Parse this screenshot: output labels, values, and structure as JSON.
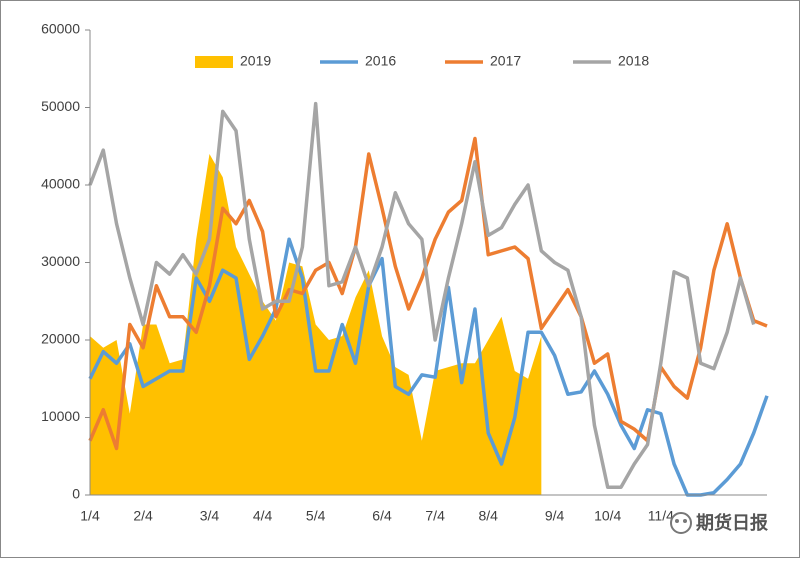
{
  "chart_data": {
    "type": "line",
    "categories": [
      "1/4",
      null,
      null,
      null,
      "2/4",
      null,
      null,
      null,
      null,
      "3/4",
      null,
      null,
      null,
      "4/4",
      null,
      null,
      null,
      "5/4",
      null,
      null,
      null,
      null,
      "6/4",
      null,
      null,
      null,
      "7/4",
      null,
      null,
      null,
      "8/4",
      null,
      null,
      null,
      null,
      "9/4",
      null,
      null,
      null,
      "10/4",
      null,
      null,
      null,
      "11/4",
      null,
      null,
      null,
      null,
      null,
      null,
      null,
      null
    ],
    "series": [
      {
        "name": "2019",
        "type": "area",
        "color": "#ffc000",
        "values": [
          20500,
          19000,
          20000,
          10500,
          22000,
          22000,
          17000,
          17500,
          33000,
          44000,
          41000,
          32000,
          28500,
          25000,
          22500,
          30000,
          29500,
          22000,
          20000,
          20500,
          25500,
          29000,
          20500,
          16500,
          15500,
          7000,
          16000,
          16500,
          17000,
          17000,
          20000,
          23000,
          16000,
          15000,
          20500,
          null,
          null,
          null,
          null,
          null,
          null,
          null,
          null,
          null,
          null,
          null,
          null,
          null,
          null,
          null,
          null,
          null
        ]
      },
      {
        "name": "2016",
        "type": "line",
        "color": "#5b9bd5",
        "values": [
          15000,
          18500,
          17000,
          19500,
          14000,
          15000,
          16000,
          16000,
          28000,
          25000,
          29000,
          28000,
          17500,
          20500,
          24000,
          33000,
          28000,
          16000,
          16000,
          22000,
          17000,
          27000,
          30500,
          14000,
          13000,
          15500,
          15200,
          26800,
          14500,
          24000,
          8000,
          4000,
          10000,
          21000,
          21000,
          18000,
          13000,
          13300,
          16000,
          13000,
          9000,
          6000,
          11000,
          10500,
          4000,
          0,
          0,
          300,
          2000,
          4000,
          8000,
          12800
        ]
      },
      {
        "name": "2017",
        "type": "line",
        "color": "#ed7d31",
        "values": [
          7000,
          11000,
          6000,
          22000,
          19000,
          27000,
          23000,
          23000,
          21000,
          27000,
          37000,
          35000,
          38000,
          34000,
          23000,
          26500,
          26000,
          29000,
          30000,
          26000,
          32000,
          44000,
          37000,
          29500,
          24000,
          28000,
          33000,
          36500,
          38000,
          46000,
          31000,
          31500,
          32000,
          30500,
          21500,
          24000,
          26500,
          23000,
          17000,
          18200,
          9500,
          8500,
          7000,
          16500,
          14000,
          12500,
          19000,
          29000,
          35000,
          28000,
          22500,
          21800
        ]
      },
      {
        "name": "2018",
        "type": "line",
        "color": "#a5a5a5",
        "values": [
          40000,
          44500,
          35000,
          28000,
          22000,
          30000,
          28500,
          31000,
          28500,
          33000,
          49500,
          47000,
          33000,
          24000,
          25000,
          25000,
          32000,
          50500,
          27000,
          27500,
          32000,
          27000,
          32000,
          39000,
          35000,
          33000,
          20000,
          28000,
          35000,
          43000,
          33500,
          34500,
          37500,
          40000,
          31500,
          30000,
          29000,
          23000,
          9000,
          1000,
          1000,
          4000,
          6500,
          17000,
          28800,
          28000,
          17000,
          16300,
          21000,
          28000,
          22000,
          null
        ]
      }
    ],
    "ylim": [
      0,
      60000
    ],
    "yticks": [
      0,
      10000,
      20000,
      30000,
      40000,
      50000,
      60000
    ],
    "grid": false,
    "legend": "top",
    "watermark": "期货日报"
  }
}
